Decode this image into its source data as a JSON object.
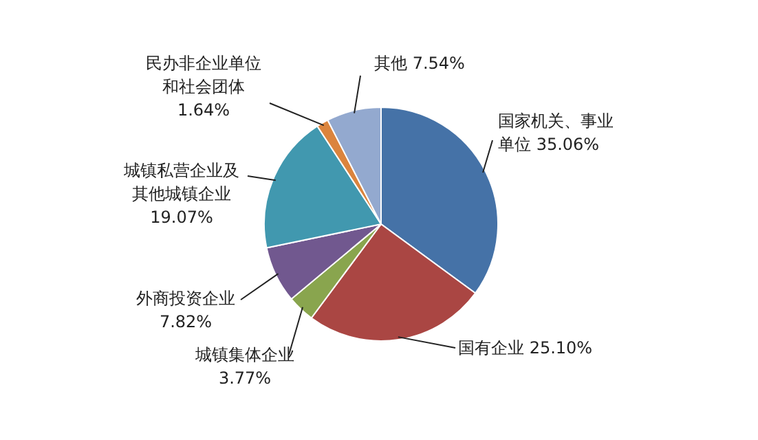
{
  "chart_data": {
    "type": "pie",
    "categories": [
      "国家机关、事业单位",
      "国有企业",
      "城镇集体企业",
      "外商投资企业",
      "城镇私营企业及其他城镇企业",
      "民办非企业单位和社会团体",
      "其他"
    ],
    "values": [
      35.06,
      25.1,
      3.77,
      7.82,
      19.07,
      1.64,
      7.54
    ],
    "value_labels": [
      "35.06%",
      "25.10%",
      "3.77%",
      "7.82%",
      "19.07%",
      "1.64%",
      "7.54%"
    ],
    "colors": [
      "#4572a7",
      "#aa4643",
      "#89a54e",
      "#71588f",
      "#4198af",
      "#db843d",
      "#93a9cf"
    ]
  }
}
